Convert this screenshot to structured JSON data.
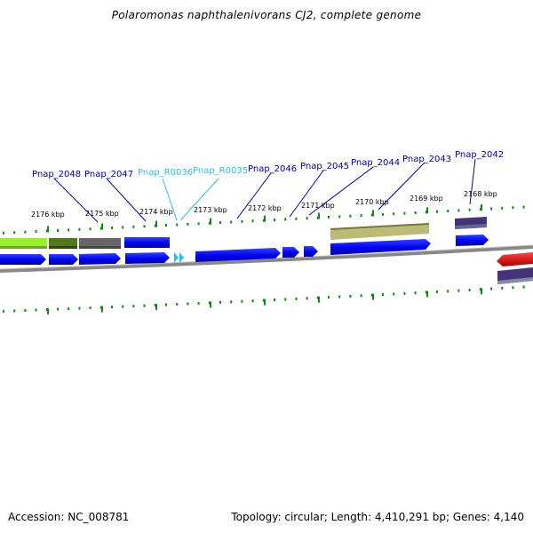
{
  "title": "Polaromonas naphthalenivorans CJ2, complete genome",
  "footer": {
    "accession": "Accession: NC_008781",
    "info": "Topology: circular; Length: 4,410,291 bp; Genes: 4,140"
  },
  "colors": {
    "cds": "#0000ee",
    "trna": "#33bbee",
    "label_cds": "#000099",
    "label_rna": "#33bbdd",
    "backbone": "#888888",
    "tick": "#118811",
    "feature_green": "#99ee33",
    "feature_olive": "#557722",
    "feature_gray": "#666666",
    "feature_khaki": "#bbbb77",
    "feature_purple": "#443377",
    "feature_red": "#ee0000"
  },
  "ruler_labels": [
    {
      "text": "2176 kbp",
      "icon": "tick-label"
    },
    {
      "text": "2175 kbp"
    },
    {
      "text": "2174 kbp"
    },
    {
      "text": "2173 kbp"
    },
    {
      "text": "2172 kbp"
    },
    {
      "text": "2171 kbp"
    },
    {
      "text": "2170 kbp"
    },
    {
      "text": "2169 kbp"
    },
    {
      "text": "2168 kbp"
    }
  ],
  "gene_labels": [
    {
      "text": "Pnap_2048",
      "kind": "cds"
    },
    {
      "text": "Pnap_2047",
      "kind": "cds"
    },
    {
      "text": "Pnap_R0036",
      "kind": "rna"
    },
    {
      "text": "Pnap_R0035",
      "kind": "rna"
    },
    {
      "text": "Pnap_2046",
      "kind": "cds"
    },
    {
      "text": "Pnap_2045",
      "kind": "cds"
    },
    {
      "text": "Pnap_2044",
      "kind": "cds"
    },
    {
      "text": "Pnap_2043",
      "kind": "cds"
    },
    {
      "text": "Pnap_2042",
      "kind": "cds"
    }
  ]
}
